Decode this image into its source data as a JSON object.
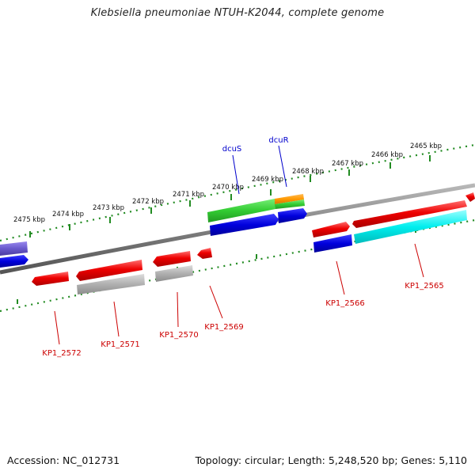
{
  "title": "Klebsiella pneumoniae NTUH-K2044, complete genome",
  "footer": {
    "accession": "Accession: NC_012731",
    "topology": "Topology: circular; Length: 5,248,520 bp; Genes: 5,110"
  },
  "ruler": {
    "ticks": [
      "2465 kbp",
      "2466 kbp",
      "2467 kbp",
      "2468 kbp",
      "2469 kbp",
      "2470 kbp",
      "2471 kbp",
      "2472 kbp",
      "2473 kbp",
      "2474 kbp",
      "2475 kbp"
    ]
  },
  "genes": {
    "forward": [
      "dcuS",
      "dcuR"
    ],
    "reverse": [
      "KP1_2565",
      "KP1_2566",
      "KP1_2569",
      "KP1_2570",
      "KP1_2571",
      "KP1_2572"
    ]
  },
  "colors": {
    "ruler": "#228b22",
    "backbone": "#7f7f7f",
    "forward_label": "#0000cc",
    "reverse_label": "#cc0000",
    "gene_red": "#ee0000",
    "gene_blue": "#0000dd",
    "gene_green": "#33cc33",
    "gene_orange": "#ff9900",
    "gene_cyan": "#00eeee",
    "gene_grey": "#b0b0b0",
    "gene_purple": "#6a5acd"
  }
}
